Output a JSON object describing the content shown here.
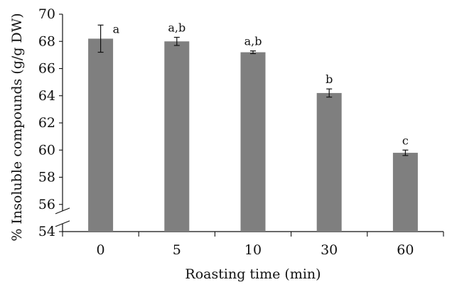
{
  "chart_data": {
    "type": "bar",
    "categories": [
      "0",
      "5",
      "10",
      "30",
      "60"
    ],
    "values": [
      68.2,
      68.0,
      67.2,
      64.2,
      59.8
    ],
    "error": [
      1.0,
      0.3,
      0.1,
      0.3,
      0.2
    ],
    "significance_labels": [
      "a",
      "a,b",
      "a,b",
      "b",
      "c"
    ],
    "xlabel": "Roasting time (min)",
    "ylabel": "% Insoluble compounds (g/g DW)",
    "ylim": [
      54,
      70
    ],
    "yticks": [
      "54",
      "56",
      "58",
      "60",
      "62",
      "64",
      "66",
      "68",
      "70"
    ],
    "axis_break": true,
    "grid": false,
    "legend": "none",
    "bar_color": "#7f7f7f"
  }
}
